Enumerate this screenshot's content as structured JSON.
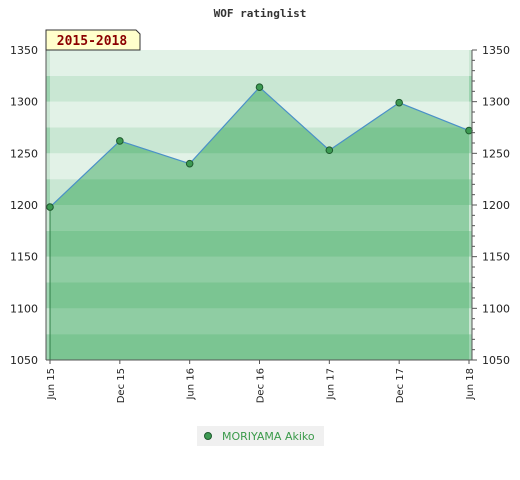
{
  "chart_data": {
    "type": "line",
    "title": "WOF ratinglist",
    "badge": "2015-2018",
    "categories": [
      "Jun 15",
      "Dec 15",
      "Jun 16",
      "Dec 16",
      "Jun 17",
      "Dec 17",
      "Jun 18"
    ],
    "series": [
      {
        "name": "MORIYAMA Akiko",
        "values": [
          1198,
          1262,
          1240,
          1314,
          1253,
          1299,
          1272
        ]
      }
    ],
    "ylim": [
      1050,
      1350
    ],
    "yticks": [
      1050,
      1100,
      1150,
      1200,
      1250,
      1300,
      1350
    ],
    "y_axis_sides": "left-and-right",
    "grid": "horizontal alternating bands",
    "legend_position": "bottom-center",
    "colors": {
      "area_fill": "#5fb87a",
      "line": "#4a90c8",
      "marker": "#3d9a52",
      "band_dark": "#7cc596",
      "band_light": "#b9dfc5",
      "badge_bg": "#ffffcc"
    }
  }
}
